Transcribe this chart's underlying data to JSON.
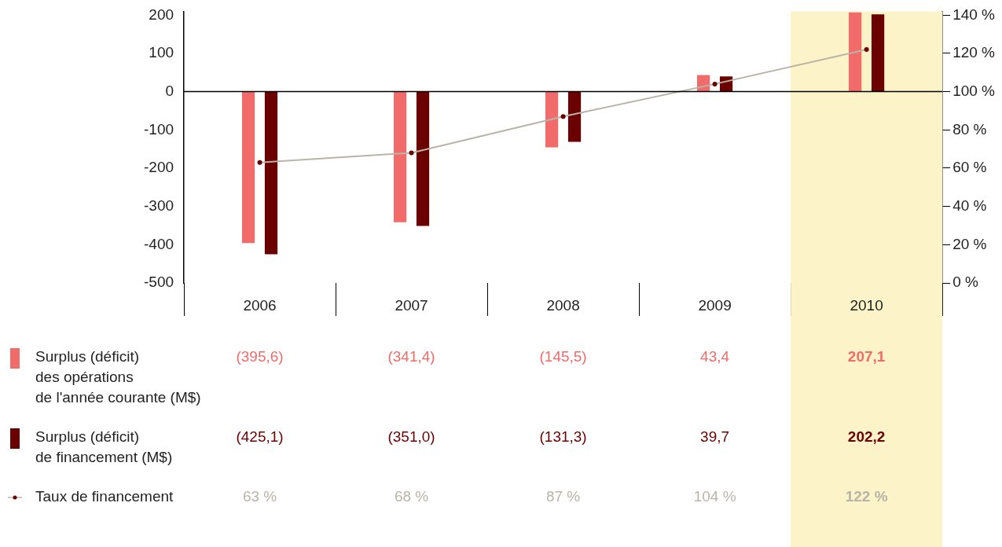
{
  "chart_data": {
    "type": "bar",
    "categories": [
      "2006",
      "2007",
      "2008",
      "2009",
      "2010"
    ],
    "series": [
      {
        "name": "Surplus (déficit)\ndes opérations\nde l'année courante (M$)",
        "color": "#f26b6b",
        "values": [
          -395.6,
          -341.4,
          -145.5,
          43.4,
          207.1
        ],
        "value_labels": [
          "(395,6)",
          "(341,4)",
          "(145,5)",
          "43,4",
          "207,1"
        ]
      },
      {
        "name": "Surplus (déficit)\nde financement (M$)",
        "color": "#6b0000",
        "values": [
          -425.1,
          -351.0,
          -131.3,
          39.7,
          202.2
        ],
        "value_labels": [
          "(425,1)",
          "(351,0)",
          "(131,3)",
          "39,7",
          "202,2"
        ]
      },
      {
        "name": "Taux de financement",
        "type": "line",
        "axis": "y2",
        "color": "#b8b4a8",
        "values": [
          63,
          68,
          87,
          104,
          122
        ],
        "value_labels": [
          "63 %",
          "68 %",
          "87 %",
          "104 %",
          "122 %"
        ]
      }
    ],
    "ylim": [
      -500,
      210
    ],
    "yticks": [
      -500,
      -400,
      -300,
      -200,
      -100,
      0,
      100,
      200
    ],
    "y2lim": [
      0,
      142
    ],
    "y2ticks": [
      {
        "value": 0,
        "label": "0 %"
      },
      {
        "value": 20,
        "label": "20 %"
      },
      {
        "value": 40,
        "label": "40 %"
      },
      {
        "value": 60,
        "label": "60 %"
      },
      {
        "value": 80,
        "label": "80 %"
      },
      {
        "value": 100,
        "label": "100 %"
      },
      {
        "value": 120,
        "label": "120 %"
      },
      {
        "value": 140,
        "label": "140 %"
      }
    ],
    "ref_lines": [
      {
        "axis": "y",
        "value": 0,
        "color": "#000000"
      }
    ],
    "bands": [
      {
        "axis": "x",
        "from": "2010",
        "to": "2010",
        "color": "#fdf3c8"
      }
    ],
    "grid": false,
    "legend": "bottom left",
    "marker": "circle",
    "line_style": "solid"
  }
}
